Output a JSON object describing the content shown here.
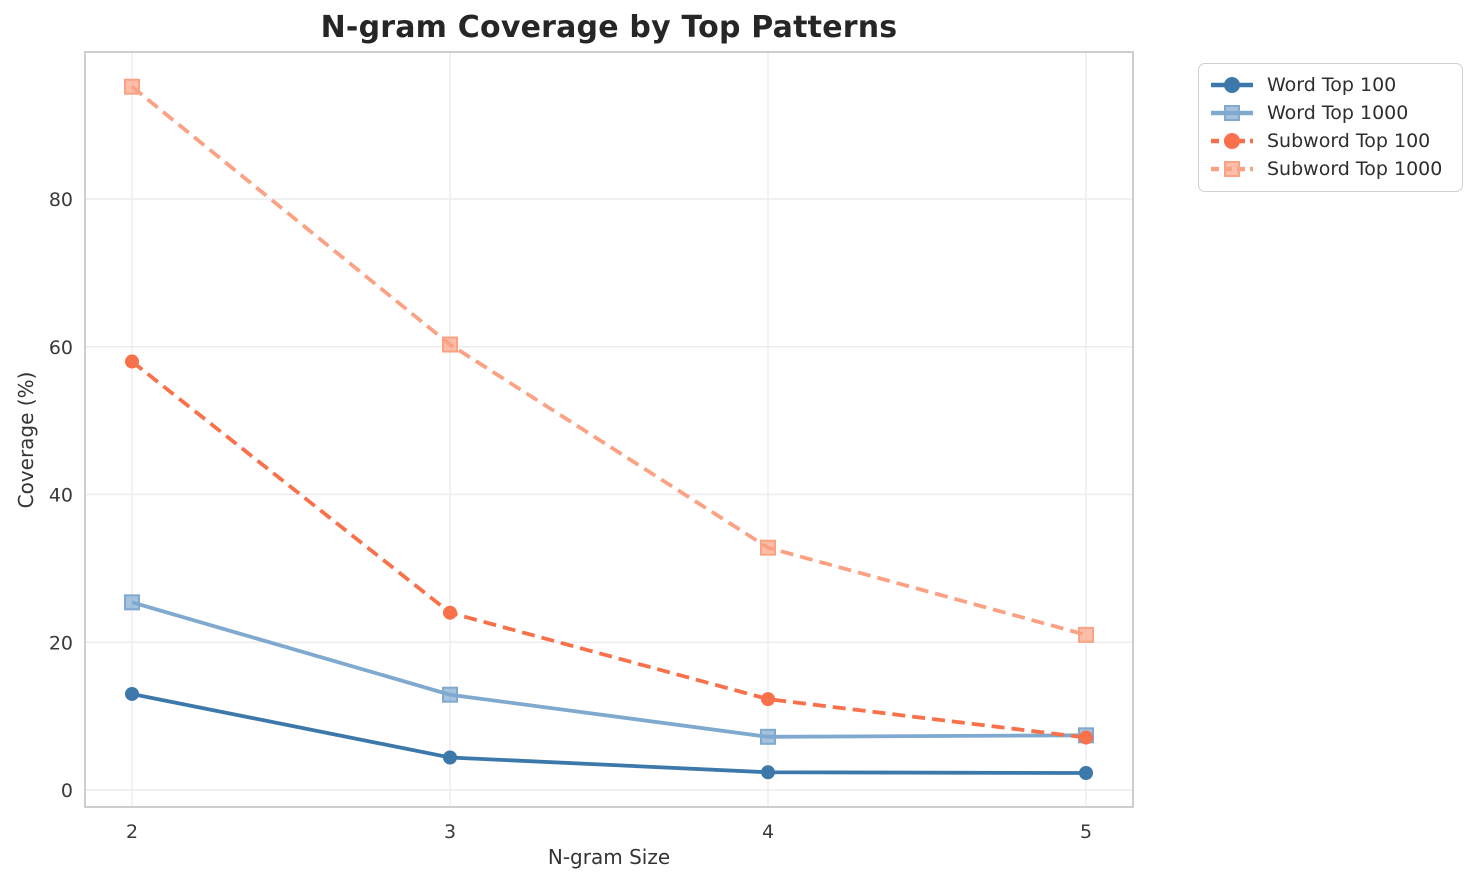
{
  "figure_title": "N-gram Coverage by Top Patterns",
  "chart_data": {
    "type": "line",
    "title": "N-gram Coverage by Top Patterns",
    "xlabel": "N-gram Size",
    "ylabel": "Coverage (%)",
    "x": [
      2,
      3,
      4,
      5
    ],
    "xticks": [
      2,
      3,
      4,
      5
    ],
    "yticks": [
      0,
      20,
      40,
      60,
      80
    ],
    "xlim": [
      1.85,
      5.15
    ],
    "ylim": [
      -2.3,
      100
    ],
    "grid": true,
    "legend_position": "upper right outside plot",
    "series": [
      {
        "name": "Word Top 100",
        "values": [
          13.0,
          4.4,
          2.4,
          2.3
        ],
        "color": "#3d78ab",
        "linestyle": "solid",
        "marker": "circle"
      },
      {
        "name": "Word Top 1000",
        "values": [
          25.4,
          12.9,
          7.2,
          7.4
        ],
        "color": "#7fa9ce",
        "linestyle": "solid",
        "marker": "square"
      },
      {
        "name": "Subword Top 100",
        "values": [
          58.0,
          24.0,
          12.3,
          7.1
        ],
        "color": "#f9714a",
        "linestyle": "dashed",
        "marker": "circle"
      },
      {
        "name": "Subword Top 1000",
        "values": [
          95.2,
          60.3,
          32.8,
          21.0
        ],
        "color": "#fba284",
        "linestyle": "dashed",
        "marker": "square"
      }
    ]
  },
  "style": {
    "grid_color": "#ececec",
    "spine_color": "#c9c9c9",
    "title_color": "#262626",
    "text_color": "#3a3a3a",
    "background": "#ffffff"
  }
}
